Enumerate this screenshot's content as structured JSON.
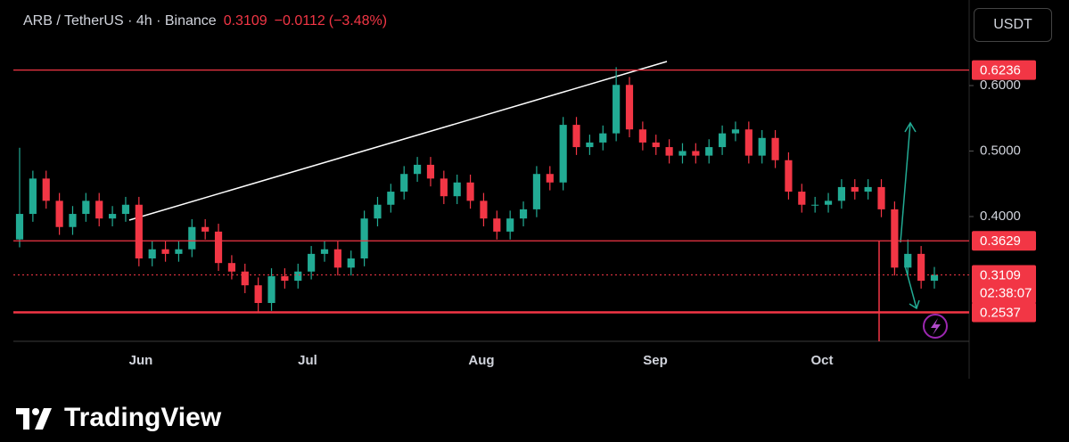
{
  "chart_data": {
    "type": "candlestick",
    "title": "ARB / TetherUS · 4h · Binance",
    "last_price": 0.3109,
    "change": "−0.0112",
    "change_pct": "(−3.48%)",
    "countdown": "02:38:07",
    "up_color": "#22ab94",
    "down_color": "#f23645",
    "open": [
      0.365,
      0.404,
      0.458,
      0.424,
      0.384,
      0.404,
      0.424,
      0.397,
      0.404,
      0.418,
      0.336,
      0.35,
      0.343,
      0.35,
      0.384,
      0.377,
      0.329,
      0.316,
      0.295,
      0.268,
      0.309,
      0.302,
      0.316,
      0.343,
      0.35,
      0.322,
      0.336,
      0.397,
      0.418,
      0.438,
      0.465,
      0.479,
      0.458,
      0.431,
      0.452,
      0.424,
      0.397,
      0.377,
      0.397,
      0.411,
      0.465,
      0.452,
      0.54,
      0.506,
      0.513,
      0.527,
      0.601,
      0.533,
      0.513,
      0.506,
      0.493,
      0.5,
      0.493,
      0.506,
      0.527,
      0.533,
      0.493,
      0.52,
      0.486,
      0.438,
      0.418,
      0.418,
      0.424,
      0.445,
      0.438,
      0.445,
      0.411,
      0.322,
      0.343,
      0.302
    ],
    "high": [
      0.505,
      0.47,
      0.47,
      0.436,
      0.416,
      0.436,
      0.436,
      0.416,
      0.43,
      0.43,
      0.362,
      0.362,
      0.362,
      0.396,
      0.396,
      0.389,
      0.341,
      0.328,
      0.307,
      0.321,
      0.321,
      0.328,
      0.355,
      0.362,
      0.362,
      0.348,
      0.409,
      0.43,
      0.45,
      0.477,
      0.491,
      0.491,
      0.47,
      0.464,
      0.464,
      0.436,
      0.409,
      0.409,
      0.423,
      0.477,
      0.477,
      0.552,
      0.552,
      0.525,
      0.539,
      0.628,
      0.613,
      0.545,
      0.525,
      0.518,
      0.512,
      0.512,
      0.518,
      0.539,
      0.545,
      0.545,
      0.532,
      0.532,
      0.498,
      0.45,
      0.43,
      0.436,
      0.457,
      0.457,
      0.457,
      0.457,
      0.423,
      0.365,
      0.355,
      0.323
    ],
    "low": [
      0.353,
      0.392,
      0.412,
      0.372,
      0.372,
      0.392,
      0.385,
      0.385,
      0.392,
      0.324,
      0.324,
      0.331,
      0.331,
      0.338,
      0.365,
      0.317,
      0.304,
      0.283,
      0.254,
      0.256,
      0.29,
      0.29,
      0.304,
      0.331,
      0.31,
      0.31,
      0.324,
      0.385,
      0.406,
      0.426,
      0.453,
      0.446,
      0.419,
      0.419,
      0.412,
      0.385,
      0.365,
      0.365,
      0.385,
      0.399,
      0.44,
      0.44,
      0.494,
      0.494,
      0.501,
      0.515,
      0.521,
      0.501,
      0.494,
      0.481,
      0.481,
      0.481,
      0.481,
      0.494,
      0.515,
      0.481,
      0.481,
      0.474,
      0.426,
      0.406,
      0.406,
      0.406,
      0.412,
      0.426,
      0.426,
      0.399,
      0.31,
      0.31,
      0.29,
      0.29
    ],
    "close": [
      0.404,
      0.458,
      0.424,
      0.384,
      0.404,
      0.424,
      0.397,
      0.404,
      0.418,
      0.336,
      0.35,
      0.343,
      0.35,
      0.384,
      0.377,
      0.329,
      0.316,
      0.295,
      0.268,
      0.309,
      0.302,
      0.316,
      0.343,
      0.35,
      0.322,
      0.336,
      0.397,
      0.418,
      0.438,
      0.465,
      0.479,
      0.458,
      0.431,
      0.452,
      0.424,
      0.397,
      0.377,
      0.397,
      0.411,
      0.465,
      0.452,
      0.54,
      0.506,
      0.513,
      0.527,
      0.601,
      0.533,
      0.513,
      0.506,
      0.493,
      0.5,
      0.493,
      0.506,
      0.527,
      0.533,
      0.493,
      0.52,
      0.486,
      0.438,
      0.418,
      0.418,
      0.424,
      0.445,
      0.438,
      0.445,
      0.411,
      0.322,
      0.343,
      0.302,
      0.3109
    ],
    "ylim": [
      0.2095,
      0.7238
    ],
    "yticks": [
      {
        "value": 0.4,
        "label": "0.4000"
      },
      {
        "value": 0.5,
        "label": "0.5000"
      },
      {
        "value": 0.6,
        "label": "0.6000"
      }
    ],
    "levels": [
      0.6236,
      0.3629,
      0.2537
    ],
    "level_color": "#f23645",
    "xtick_labels": [
      "Jun",
      "Jul",
      "Aug",
      "Sep",
      "Oct"
    ]
  },
  "toolbar": {
    "currency": "USDT"
  },
  "footer": {
    "brand": "TradingView"
  }
}
